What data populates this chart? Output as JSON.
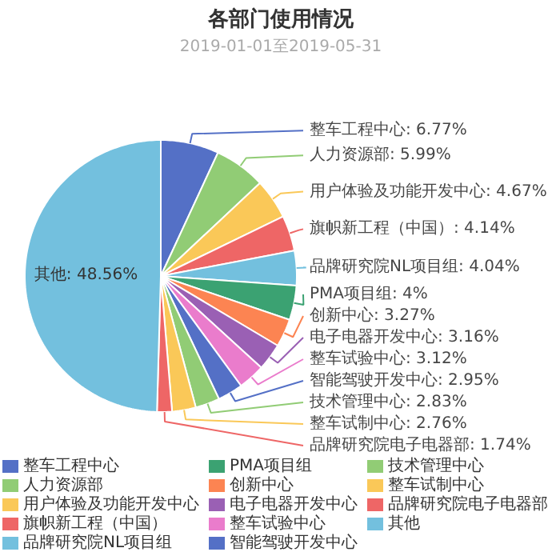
{
  "chart_data": {
    "type": "pie",
    "title": "各部门使用情况",
    "subtitle": "2019-01-01至2019-05-31",
    "categories": [
      "整车工程中心",
      "人力资源部",
      "用户体验及功能开发中心",
      "旗帜新工程（中国）",
      "品牌研究院NL项目组",
      "PMA项目组",
      "创新中心",
      "电子电器开发中心",
      "整车试验中心",
      "智能驾驶开发中心",
      "技术管理中心",
      "整车试制中心",
      "品牌研究院电子电器部",
      "其他"
    ],
    "values": [
      6.77,
      5.99,
      4.67,
      4.14,
      4.04,
      4,
      3.27,
      3.16,
      3.12,
      2.95,
      2.83,
      2.76,
      1.74,
      48.56
    ],
    "value_labels": [
      "整车工程中心: 6.77%",
      "人力资源部: 5.99%",
      "用户体验及功能开发中心: 4.67%",
      "旗帜新工程（中国）: 4.14%",
      "品牌研究院NL项目组: 4.04%",
      "PMA项目组: 4%",
      "创新中心: 3.27%",
      "电子电器开发中心: 3.16%",
      "整车试验中心: 3.12%",
      "智能驾驶开发中心: 2.95%",
      "技术管理中心: 2.83%",
      "整车试制中心: 2.76%",
      "品牌研究院电子电器部: 1.74%",
      "其他: 48.56%"
    ],
    "colors": [
      "#5470c6",
      "#91cc75",
      "#fac858",
      "#ee6666",
      "#73c0de",
      "#3ba272",
      "#fc8452",
      "#9a60b4",
      "#ea7ccc",
      "#5470c6",
      "#91cc75",
      "#fac858",
      "#ee6666",
      "#73c0de"
    ],
    "legend": "bottom"
  }
}
